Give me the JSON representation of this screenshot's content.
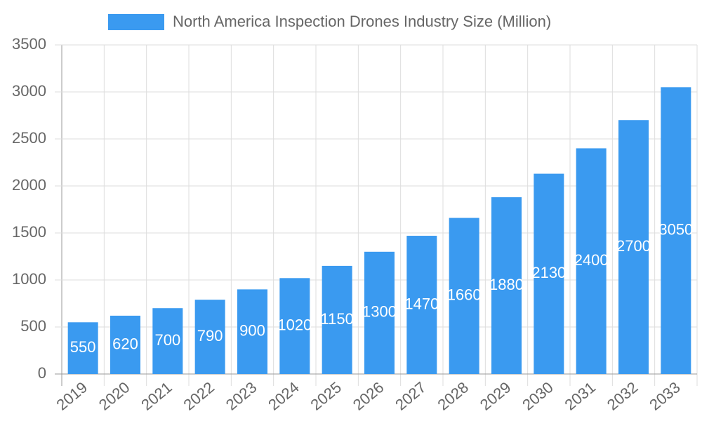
{
  "chart_data": {
    "type": "bar",
    "categories": [
      "2019",
      "2020",
      "2021",
      "2022",
      "2023",
      "2024",
      "2025",
      "2026",
      "2027",
      "2028",
      "2029",
      "2030",
      "2031",
      "2032",
      "2033"
    ],
    "series": [
      {
        "name": "North America Inspection Drones Industry Size (Million)",
        "color": "#3a9af0",
        "values": [
          550,
          620,
          700,
          790,
          900,
          1020,
          1150,
          1300,
          1470,
          1660,
          1880,
          2130,
          2400,
          2700,
          3050
        ]
      }
    ],
    "ylim": [
      0,
      3500
    ],
    "yticks": [
      0,
      500,
      1000,
      1500,
      2000,
      2500,
      3000,
      3500
    ],
    "grid": true,
    "legend": "top"
  }
}
